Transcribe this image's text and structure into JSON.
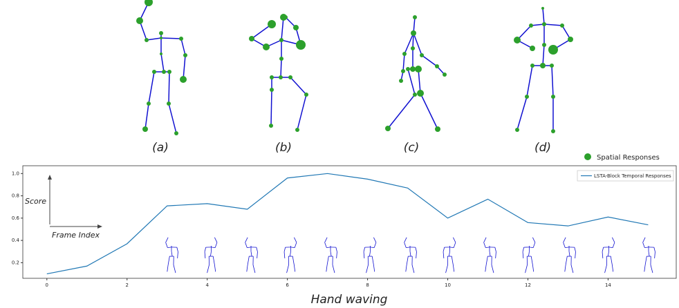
{
  "figure": {
    "panel_labels": [
      "(a)",
      "(b)",
      "(c)",
      "(d)"
    ],
    "spatial_legend": "Spatial Responses"
  },
  "chart_data": {
    "type": "line",
    "xlabel": "Hand waving",
    "annotations": [
      "Score",
      "Frame Index"
    ],
    "x": [
      0,
      1,
      2,
      3,
      4,
      5,
      6,
      7,
      8,
      9,
      10,
      11,
      12,
      13,
      14,
      15
    ],
    "series": [
      {
        "name": "LSTA-Block Temporal Responses",
        "color": "#1f77b4",
        "values": [
          0.1,
          0.17,
          0.37,
          0.71,
          0.73,
          0.68,
          0.96,
          1.0,
          0.95,
          0.87,
          0.6,
          0.77,
          0.56,
          0.53,
          0.61,
          0.54
        ]
      }
    ],
    "xlim": [
      -0.6,
      15.7
    ],
    "ylim": [
      0.06,
      1.07
    ],
    "xticks": [
      0,
      2,
      4,
      6,
      8,
      10,
      12,
      14
    ],
    "yticks": [
      0.2,
      0.4,
      0.6,
      0.8,
      {
        "value": 1,
        "label": "1.0"
      }
    ],
    "legend": "upper right"
  }
}
